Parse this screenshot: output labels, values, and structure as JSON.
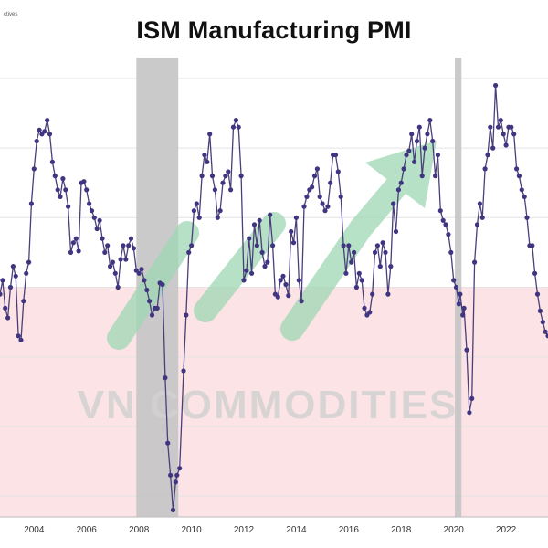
{
  "source_note": "ctives",
  "watermark": "VN COMMODITIES",
  "colors": {
    "line": "#4a3f7a",
    "marker": "#3f3580",
    "recession": "#c4c4c4",
    "contraction": "#fbe3e6",
    "grid": "#e4e4e4",
    "watermark_text": "#d0d0d0",
    "watermark_arrow": "#9ed8b4"
  },
  "chart_data": {
    "type": "line",
    "title": "ISM Manufacturing PMI",
    "xlabel": "",
    "ylabel": "",
    "xlim": [
      2002.7,
      2023.6
    ],
    "ylim": [
      33.5,
      66.5
    ],
    "x_ticks": [
      "2004",
      "2006",
      "2008",
      "2010",
      "2012",
      "2014",
      "2016",
      "2018",
      "2020",
      "2022"
    ],
    "grid": true,
    "threshold": 50,
    "recession_bands": [
      [
        2007.9,
        2009.5
      ],
      [
        2020.05,
        2020.3
      ]
    ],
    "series": [
      {
        "name": "ISM Manufacturing PMI",
        "points": [
          [
            2002.7,
            49.5
          ],
          [
            2002.8,
            50.5
          ],
          [
            2002.9,
            48.5
          ],
          [
            2003.0,
            47.8
          ],
          [
            2003.1,
            50.0
          ],
          [
            2003.2,
            51.5
          ],
          [
            2003.3,
            50.8
          ],
          [
            2003.4,
            46.5
          ],
          [
            2003.5,
            46.2
          ],
          [
            2003.6,
            49.0
          ],
          [
            2003.7,
            51.0
          ],
          [
            2003.8,
            51.8
          ],
          [
            2003.9,
            56.0
          ],
          [
            2004.0,
            58.5
          ],
          [
            2004.1,
            60.5
          ],
          [
            2004.2,
            61.3
          ],
          [
            2004.3,
            61.0
          ],
          [
            2004.4,
            61.2
          ],
          [
            2004.5,
            62.0
          ],
          [
            2004.6,
            61.0
          ],
          [
            2004.7,
            59.0
          ],
          [
            2004.8,
            58.0
          ],
          [
            2004.9,
            57.0
          ],
          [
            2005.0,
            56.5
          ],
          [
            2005.1,
            57.8
          ],
          [
            2005.2,
            57.0
          ],
          [
            2005.3,
            55.8
          ],
          [
            2005.4,
            52.5
          ],
          [
            2005.5,
            53.2
          ],
          [
            2005.6,
            53.5
          ],
          [
            2005.7,
            52.6
          ],
          [
            2005.8,
            57.5
          ],
          [
            2005.9,
            57.6
          ],
          [
            2006.0,
            57.0
          ],
          [
            2006.1,
            56.0
          ],
          [
            2006.2,
            55.5
          ],
          [
            2006.3,
            55.0
          ],
          [
            2006.4,
            54.2
          ],
          [
            2006.5,
            54.8
          ],
          [
            2006.6,
            53.5
          ],
          [
            2006.7,
            52.5
          ],
          [
            2006.8,
            53.0
          ],
          [
            2006.9,
            51.5
          ],
          [
            2007.0,
            51.8
          ],
          [
            2007.1,
            51.0
          ],
          [
            2007.2,
            50.0
          ],
          [
            2007.3,
            52.0
          ],
          [
            2007.4,
            53.0
          ],
          [
            2007.5,
            52.0
          ],
          [
            2007.6,
            53.0
          ],
          [
            2007.7,
            53.5
          ],
          [
            2007.8,
            52.8
          ],
          [
            2007.9,
            51.2
          ],
          [
            2008.0,
            51.0
          ],
          [
            2008.1,
            51.3
          ],
          [
            2008.2,
            50.5
          ],
          [
            2008.3,
            49.8
          ],
          [
            2008.4,
            49.0
          ],
          [
            2008.5,
            48.0
          ],
          [
            2008.6,
            48.5
          ],
          [
            2008.7,
            48.5
          ],
          [
            2008.8,
            50.3
          ],
          [
            2008.9,
            50.2
          ],
          [
            2009.0,
            43.5
          ],
          [
            2009.1,
            38.8
          ],
          [
            2009.2,
            36.5
          ],
          [
            2009.3,
            34.0
          ],
          [
            2009.4,
            36.0
          ],
          [
            2009.45,
            36.5
          ],
          [
            2009.55,
            37.0
          ],
          [
            2009.7,
            44.0
          ],
          [
            2009.8,
            48.0
          ],
          [
            2009.9,
            52.5
          ],
          [
            2010.0,
            53.0
          ],
          [
            2010.1,
            55.5
          ],
          [
            2010.2,
            56.0
          ],
          [
            2010.3,
            55.0
          ],
          [
            2010.4,
            58.0
          ],
          [
            2010.5,
            59.5
          ],
          [
            2010.6,
            59.0
          ],
          [
            2010.7,
            61.0
          ],
          [
            2010.8,
            58.0
          ],
          [
            2010.9,
            57.0
          ],
          [
            2011.0,
            55.0
          ],
          [
            2011.1,
            55.5
          ],
          [
            2011.2,
            57.5
          ],
          [
            2011.3,
            58.0
          ],
          [
            2011.4,
            58.3
          ],
          [
            2011.5,
            57.0
          ],
          [
            2011.6,
            61.5
          ],
          [
            2011.7,
            62.0
          ],
          [
            2011.8,
            61.5
          ],
          [
            2011.9,
            58.0
          ],
          [
            2012.0,
            50.5
          ],
          [
            2012.1,
            51.2
          ],
          [
            2012.2,
            53.5
          ],
          [
            2012.3,
            51.0
          ],
          [
            2012.4,
            54.5
          ],
          [
            2012.5,
            53.0
          ],
          [
            2012.6,
            54.8
          ],
          [
            2012.7,
            52.5
          ],
          [
            2012.8,
            51.5
          ],
          [
            2012.9,
            51.8
          ],
          [
            2013.0,
            55.2
          ],
          [
            2013.1,
            53.0
          ],
          [
            2013.2,
            49.5
          ],
          [
            2013.3,
            49.3
          ],
          [
            2013.4,
            50.5
          ],
          [
            2013.5,
            50.8
          ],
          [
            2013.6,
            50.2
          ],
          [
            2013.7,
            49.4
          ],
          [
            2013.8,
            54.0
          ],
          [
            2013.9,
            53.2
          ],
          [
            2014.0,
            55.0
          ],
          [
            2014.1,
            50.5
          ],
          [
            2014.2,
            49.0
          ],
          [
            2014.3,
            55.8
          ],
          [
            2014.4,
            56.5
          ],
          [
            2014.5,
            57.0
          ],
          [
            2014.6,
            57.2
          ],
          [
            2014.7,
            58.0
          ],
          [
            2014.8,
            58.5
          ],
          [
            2014.9,
            56.5
          ],
          [
            2015.0,
            56.0
          ],
          [
            2015.1,
            55.5
          ],
          [
            2015.2,
            55.8
          ],
          [
            2015.3,
            57.5
          ],
          [
            2015.4,
            59.5
          ],
          [
            2015.5,
            59.5
          ],
          [
            2015.6,
            58.3
          ],
          [
            2015.7,
            56.5
          ],
          [
            2015.8,
            53.0
          ],
          [
            2015.9,
            51.0
          ],
          [
            2016.0,
            53.0
          ],
          [
            2016.1,
            51.8
          ],
          [
            2016.2,
            52.5
          ],
          [
            2016.3,
            50.0
          ],
          [
            2016.4,
            51.0
          ],
          [
            2016.5,
            50.5
          ],
          [
            2016.6,
            48.5
          ],
          [
            2016.7,
            48.0
          ],
          [
            2016.8,
            48.2
          ],
          [
            2016.9,
            49.5
          ],
          [
            2017.0,
            52.5
          ],
          [
            2017.1,
            53.0
          ],
          [
            2017.2,
            51.5
          ],
          [
            2017.3,
            53.2
          ],
          [
            2017.4,
            52.5
          ],
          [
            2017.5,
            49.5
          ],
          [
            2017.6,
            51.5
          ],
          [
            2017.7,
            56.0
          ],
          [
            2017.8,
            54.0
          ],
          [
            2017.9,
            57.0
          ],
          [
            2018.0,
            57.5
          ],
          [
            2018.1,
            58.5
          ],
          [
            2018.2,
            59.5
          ],
          [
            2018.3,
            59.8
          ],
          [
            2018.4,
            61.0
          ],
          [
            2018.5,
            59.0
          ],
          [
            2018.6,
            60.5
          ],
          [
            2018.7,
            61.5
          ],
          [
            2018.8,
            58.0
          ],
          [
            2018.9,
            60.0
          ],
          [
            2019.0,
            61.0
          ],
          [
            2019.1,
            62.0
          ],
          [
            2019.2,
            60.5
          ],
          [
            2019.3,
            58.0
          ],
          [
            2019.4,
            59.5
          ],
          [
            2019.5,
            55.5
          ],
          [
            2019.6,
            54.8
          ],
          [
            2019.7,
            54.5
          ],
          [
            2019.8,
            53.8
          ],
          [
            2019.9,
            52.5
          ],
          [
            2020.0,
            50.5
          ],
          [
            2020.1,
            50.0
          ],
          [
            2020.2,
            48.8
          ],
          [
            2020.25,
            49.5
          ],
          [
            2020.35,
            48.0
          ],
          [
            2020.4,
            48.5
          ],
          [
            2020.5,
            45.5
          ],
          [
            2020.6,
            41.0
          ],
          [
            2020.7,
            42.0
          ],
          [
            2020.8,
            51.8
          ],
          [
            2020.9,
            54.5
          ],
          [
            2021.0,
            56.0
          ],
          [
            2021.1,
            55.0
          ],
          [
            2021.2,
            58.5
          ],
          [
            2021.3,
            59.5
          ],
          [
            2021.4,
            61.5
          ],
          [
            2021.5,
            60.0
          ],
          [
            2021.6,
            64.5
          ],
          [
            2021.7,
            61.5
          ],
          [
            2021.8,
            62.0
          ],
          [
            2021.9,
            61.0
          ],
          [
            2022.0,
            60.2
          ],
          [
            2022.1,
            61.5
          ],
          [
            2022.2,
            61.5
          ],
          [
            2022.3,
            61.0
          ],
          [
            2022.4,
            58.5
          ],
          [
            2022.5,
            58.0
          ],
          [
            2022.6,
            57.0
          ],
          [
            2022.7,
            56.5
          ],
          [
            2022.8,
            55.0
          ],
          [
            2022.9,
            53.0
          ],
          [
            2023.0,
            53.0
          ],
          [
            2023.1,
            51.0
          ],
          [
            2023.2,
            49.5
          ],
          [
            2023.3,
            48.3
          ],
          [
            2023.4,
            47.5
          ],
          [
            2023.5,
            46.8
          ],
          [
            2023.6,
            46.5
          ]
        ]
      }
    ]
  }
}
